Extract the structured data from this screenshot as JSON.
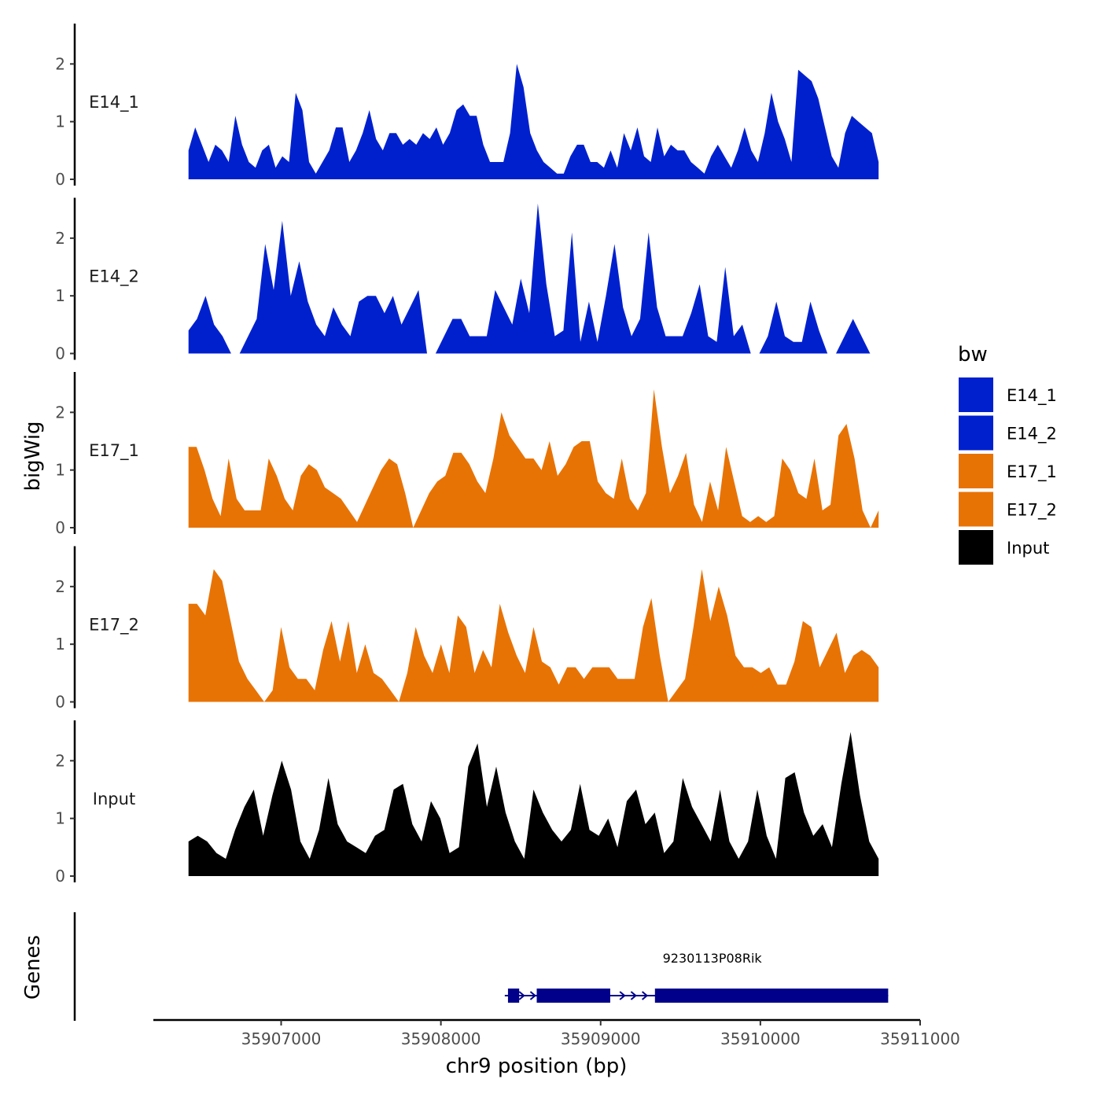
{
  "chart_data": {
    "type": "area",
    "ylabel": "bigWig",
    "xlabel": "chr9 position (bp)",
    "genes_label": "Genes",
    "xlim": [
      35906200,
      35911000
    ],
    "data_xrange": [
      35906420,
      35910740
    ],
    "ylim": [
      0,
      2.7
    ],
    "y_ticks": [
      0,
      1,
      2
    ],
    "x_ticks": [
      35907000,
      35908000,
      35909000,
      35910000,
      35911000
    ],
    "x_tick_labels": [
      "35907000",
      "35908000",
      "35909000",
      "35910000",
      "35911000"
    ],
    "legend": {
      "title": "bw",
      "entries": [
        {
          "name": "E14_1",
          "color": "#0020CE"
        },
        {
          "name": "E14_2",
          "color": "#0020CE"
        },
        {
          "name": "E17_1",
          "color": "#E87305"
        },
        {
          "name": "E17_2",
          "color": "#E87305"
        },
        {
          "name": "Input",
          "color": "#000000"
        }
      ]
    },
    "tracks": [
      {
        "name": "E14_1",
        "color": "#0020CE",
        "values": [
          0.5,
          0.9,
          0.6,
          0.3,
          0.6,
          0.5,
          0.3,
          1.1,
          0.6,
          0.3,
          0.2,
          0.5,
          0.6,
          0.2,
          0.4,
          0.3,
          1.5,
          1.2,
          0.3,
          0.1,
          0.3,
          0.5,
          0.9,
          0.9,
          0.3,
          0.5,
          0.8,
          1.2,
          0.7,
          0.5,
          0.8,
          0.8,
          0.6,
          0.7,
          0.6,
          0.8,
          0.7,
          0.9,
          0.6,
          0.8,
          1.2,
          1.3,
          1.1,
          1.1,
          0.6,
          0.3,
          0.3,
          0.3,
          0.8,
          2.0,
          1.6,
          0.8,
          0.5,
          0.3,
          0.2,
          0.1,
          0.1,
          0.4,
          0.6,
          0.6,
          0.3,
          0.3,
          0.2,
          0.5,
          0.2,
          0.8,
          0.5,
          0.9,
          0.4,
          0.3,
          0.9,
          0.4,
          0.6,
          0.5,
          0.5,
          0.3,
          0.2,
          0.1,
          0.4,
          0.6,
          0.4,
          0.2,
          0.5,
          0.9,
          0.5,
          0.3,
          0.8,
          1.5,
          1.0,
          0.7,
          0.3,
          1.9,
          1.8,
          1.7,
          1.4,
          0.9,
          0.4,
          0.2,
          0.8,
          1.1,
          1.0,
          0.9,
          0.8,
          0.3
        ]
      },
      {
        "name": "E14_2",
        "color": "#0020CE",
        "values": [
          0.4,
          0.6,
          1.0,
          0.5,
          0.3,
          0.0,
          0.0,
          0.3,
          0.6,
          1.9,
          1.1,
          2.3,
          1.0,
          1.6,
          0.9,
          0.5,
          0.3,
          0.8,
          0.5,
          0.3,
          0.9,
          1.0,
          1.0,
          0.7,
          1.0,
          0.5,
          0.8,
          1.1,
          0.0,
          0.0,
          0.3,
          0.6,
          0.6,
          0.3,
          0.3,
          0.3,
          1.1,
          0.8,
          0.5,
          1.3,
          0.7,
          2.6,
          1.2,
          0.3,
          0.4,
          2.1,
          0.2,
          0.9,
          0.2,
          1.0,
          1.9,
          0.8,
          0.3,
          0.6,
          2.1,
          0.8,
          0.3,
          0.3,
          0.3,
          0.7,
          1.2,
          0.3,
          0.2,
          1.5,
          0.3,
          0.5,
          0.0,
          0.0,
          0.3,
          0.9,
          0.3,
          0.2,
          0.2,
          0.9,
          0.4,
          0.0,
          0.0,
          0.3,
          0.6,
          0.3,
          0.0,
          0.0
        ]
      },
      {
        "name": "E17_1",
        "color": "#E87305",
        "values": [
          1.4,
          1.4,
          1.0,
          0.5,
          0.2,
          1.2,
          0.5,
          0.3,
          0.3,
          0.3,
          1.2,
          0.9,
          0.5,
          0.3,
          0.9,
          1.1,
          1.0,
          0.7,
          0.6,
          0.5,
          0.3,
          0.1,
          0.4,
          0.7,
          1.0,
          1.2,
          1.1,
          0.6,
          0.0,
          0.3,
          0.6,
          0.8,
          0.9,
          1.3,
          1.3,
          1.1,
          0.8,
          0.6,
          1.2,
          2.0,
          1.6,
          1.4,
          1.2,
          1.2,
          1.0,
          1.5,
          0.9,
          1.1,
          1.4,
          1.5,
          1.5,
          0.8,
          0.6,
          0.5,
          1.2,
          0.5,
          0.3,
          0.6,
          2.4,
          1.4,
          0.6,
          0.9,
          1.3,
          0.4,
          0.1,
          0.8,
          0.3,
          1.4,
          0.8,
          0.2,
          0.1,
          0.2,
          0.1,
          0.2,
          1.2,
          1.0,
          0.6,
          0.5,
          1.2,
          0.3,
          0.4,
          1.6,
          1.8,
          1.2,
          0.3,
          0.0,
          0.3
        ]
      },
      {
        "name": "E17_2",
        "color": "#E87305",
        "values": [
          1.7,
          1.7,
          1.5,
          2.3,
          2.1,
          1.4,
          0.7,
          0.4,
          0.2,
          0.0,
          0.2,
          1.3,
          0.6,
          0.4,
          0.4,
          0.2,
          0.9,
          1.4,
          0.7,
          1.4,
          0.5,
          1.0,
          0.5,
          0.4,
          0.2,
          0.0,
          0.5,
          1.3,
          0.8,
          0.5,
          1.0,
          0.5,
          1.5,
          1.3,
          0.5,
          0.9,
          0.6,
          1.7,
          1.2,
          0.8,
          0.5,
          1.3,
          0.7,
          0.6,
          0.3,
          0.6,
          0.6,
          0.4,
          0.6,
          0.6,
          0.6,
          0.4,
          0.4,
          0.4,
          1.3,
          1.8,
          0.8,
          0.0,
          0.2,
          0.4,
          1.3,
          2.3,
          1.4,
          2.0,
          1.5,
          0.8,
          0.6,
          0.6,
          0.5,
          0.6,
          0.3,
          0.3,
          0.7,
          1.4,
          1.3,
          0.6,
          0.9,
          1.2,
          0.5,
          0.8,
          0.9,
          0.8,
          0.6
        ]
      },
      {
        "name": "Input",
        "color": "#000000",
        "values": [
          0.6,
          0.7,
          0.6,
          0.4,
          0.3,
          0.8,
          1.2,
          1.5,
          0.7,
          1.4,
          2.0,
          1.5,
          0.6,
          0.3,
          0.8,
          1.7,
          0.9,
          0.6,
          0.5,
          0.4,
          0.7,
          0.8,
          1.5,
          1.6,
          0.9,
          0.6,
          1.3,
          1.0,
          0.4,
          0.5,
          1.9,
          2.3,
          1.2,
          1.9,
          1.1,
          0.6,
          0.3,
          1.5,
          1.1,
          0.8,
          0.6,
          0.8,
          1.6,
          0.8,
          0.7,
          1.0,
          0.5,
          1.3,
          1.5,
          0.9,
          1.1,
          0.4,
          0.6,
          1.7,
          1.2,
          0.9,
          0.6,
          1.5,
          0.6,
          0.3,
          0.6,
          1.5,
          0.7,
          0.3,
          1.7,
          1.8,
          1.1,
          0.7,
          0.9,
          0.5,
          1.6,
          2.5,
          1.4,
          0.6,
          0.3
        ]
      }
    ],
    "gene": {
      "name": "9230113P08Rik",
      "strand": "+",
      "line_start": 35908400,
      "line_end": 35910800,
      "exons": [
        {
          "start": 35908420,
          "end": 35908490
        },
        {
          "start": 35908600,
          "end": 35909060
        },
        {
          "start": 35909340,
          "end": 35910800
        }
      ],
      "color": "#00008B"
    }
  }
}
